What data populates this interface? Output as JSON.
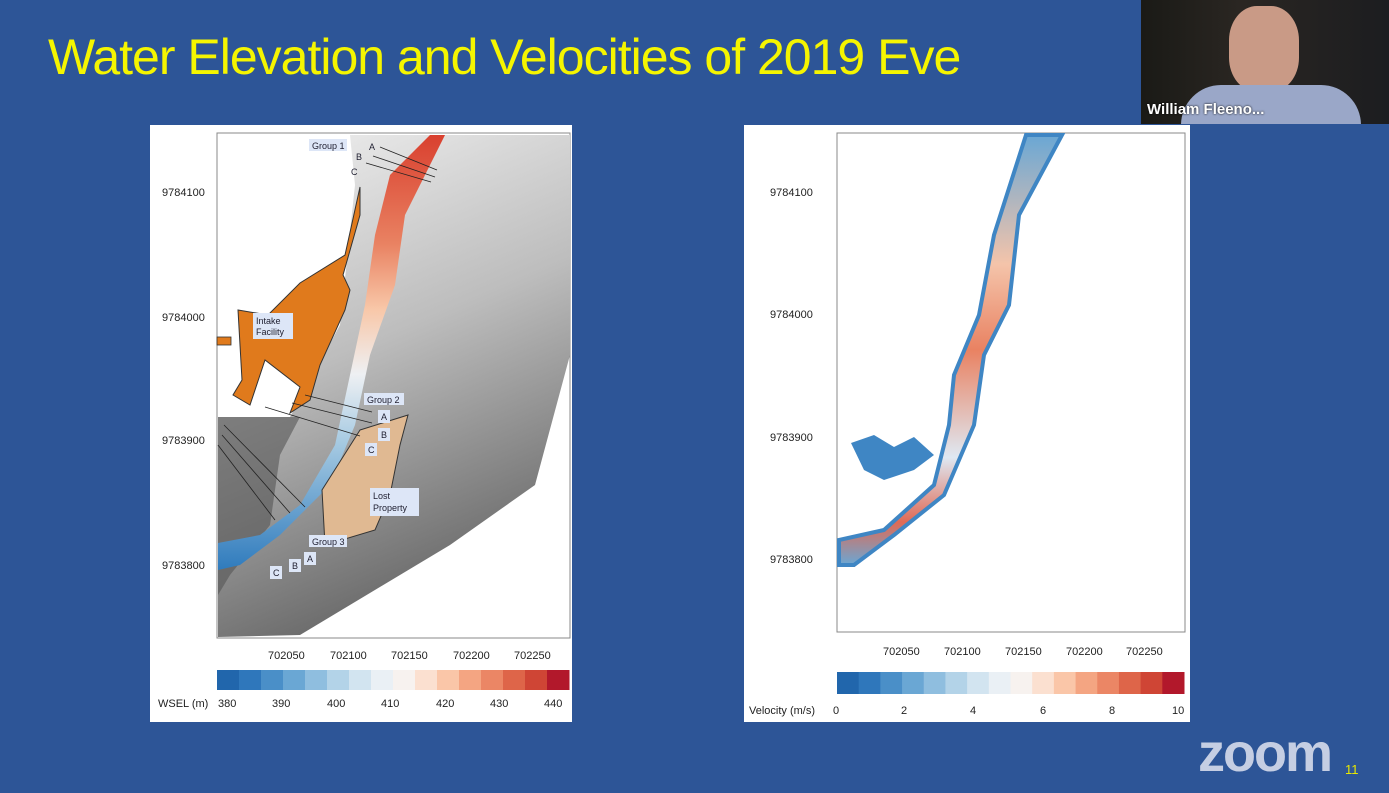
{
  "slide": {
    "title": "Water Elevation and Velocities of 2019 Eve",
    "number": "11"
  },
  "left_map": {
    "y_ticks": [
      "9784100",
      "9784000",
      "9783900",
      "9783800"
    ],
    "x_ticks": [
      "702050",
      "702100",
      "702150",
      "702200",
      "702250"
    ],
    "labels": {
      "group1": "Group 1",
      "group2": "Group 2",
      "group3": "Group 3",
      "a": "A",
      "b": "B",
      "c": "C",
      "intake": [
        "Intake",
        "Facility"
      ],
      "lost": [
        "Lost",
        "Property"
      ]
    },
    "colorbar": {
      "label": "WSEL (m)",
      "ticks": [
        "380",
        "390",
        "400",
        "410",
        "420",
        "430",
        "440"
      ],
      "colors": [
        "#2166ac",
        "#2f77bb",
        "#4a8fc8",
        "#6aa7d4",
        "#8fbedf",
        "#b3d3e8",
        "#d2e4f0",
        "#eaf0f5",
        "#f7f2ef",
        "#fbe0d0",
        "#fac6a8",
        "#f4a582",
        "#eb8665",
        "#de6549",
        "#cf4535",
        "#b2182b"
      ]
    }
  },
  "right_map": {
    "y_ticks": [
      "9784100",
      "9784000",
      "9783900",
      "9783800"
    ],
    "x_ticks": [
      "702050",
      "702100",
      "702150",
      "702200",
      "702250"
    ],
    "colorbar": {
      "label": "Velocity (m/s)",
      "ticks": [
        "0",
        "2",
        "4",
        "6",
        "8",
        "10"
      ],
      "colors": [
        "#2166ac",
        "#2f77bb",
        "#4a8fc8",
        "#6aa7d4",
        "#8fbedf",
        "#b3d3e8",
        "#d2e4f0",
        "#eaf0f5",
        "#f7f2ef",
        "#fbe0d0",
        "#fac6a8",
        "#f4a582",
        "#eb8665",
        "#de6549",
        "#cf4535",
        "#b2182b"
      ]
    }
  },
  "video": {
    "participant_name": "William Fleeno..."
  },
  "watermark": "zoom"
}
